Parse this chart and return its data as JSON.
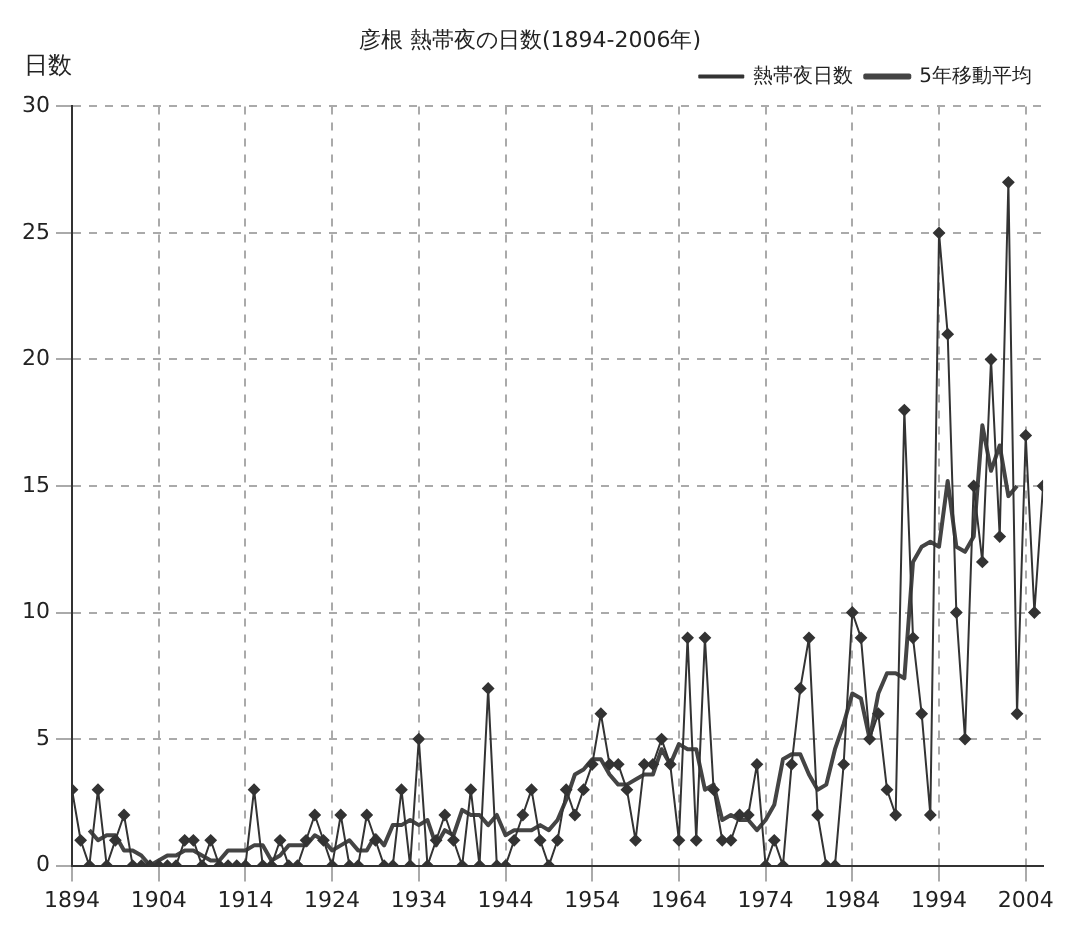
{
  "chart_data": {
    "type": "line",
    "title": "彦根 熱帯夜の日数(1894-2006年)",
    "ylabel": "日数",
    "x": [
      1894,
      1895,
      1896,
      1897,
      1898,
      1899,
      1900,
      1901,
      1902,
      1903,
      1904,
      1905,
      1906,
      1907,
      1908,
      1909,
      1910,
      1911,
      1912,
      1913,
      1914,
      1915,
      1916,
      1917,
      1918,
      1919,
      1920,
      1921,
      1922,
      1923,
      1924,
      1925,
      1926,
      1927,
      1928,
      1929,
      1930,
      1931,
      1932,
      1933,
      1934,
      1935,
      1936,
      1937,
      1938,
      1939,
      1940,
      1941,
      1942,
      1943,
      1944,
      1945,
      1946,
      1947,
      1948,
      1949,
      1950,
      1951,
      1952,
      1953,
      1954,
      1955,
      1956,
      1957,
      1958,
      1959,
      1960,
      1961,
      1962,
      1963,
      1964,
      1965,
      1966,
      1967,
      1968,
      1969,
      1970,
      1971,
      1972,
      1973,
      1974,
      1975,
      1976,
      1977,
      1978,
      1979,
      1980,
      1981,
      1982,
      1983,
      1984,
      1985,
      1986,
      1987,
      1988,
      1989,
      1990,
      1991,
      1992,
      1993,
      1994,
      1995,
      1996,
      1997,
      1998,
      1999,
      2000,
      2001,
      2002,
      2003,
      2004,
      2005,
      2006
    ],
    "series": [
      {
        "name": "熱帯夜日数",
        "color": "#333333",
        "marker": "diamond",
        "values": [
          3,
          1,
          0,
          3,
          0,
          1,
          2,
          0,
          0,
          0,
          0,
          0,
          0,
          1,
          1,
          0,
          1,
          0,
          0,
          0,
          0,
          3,
          0,
          0,
          1,
          0,
          0,
          1,
          2,
          1,
          0,
          2,
          0,
          0,
          2,
          1,
          0,
          0,
          3,
          0,
          5,
          0,
          1,
          2,
          1,
          0,
          3,
          0,
          7,
          0,
          0,
          1,
          2,
          3,
          1,
          0,
          1,
          3,
          2,
          3,
          4,
          6,
          4,
          4,
          3,
          1,
          4,
          4,
          5,
          4,
          1,
          9,
          1,
          9,
          3,
          1,
          1,
          2,
          2,
          4,
          0,
          1,
          0,
          4,
          7,
          9,
          2,
          0,
          0,
          4,
          10,
          9,
          5,
          6,
          3,
          2,
          18,
          9,
          6,
          2,
          25,
          21,
          10,
          5,
          15,
          12,
          20,
          13,
          27,
          6,
          17,
          10,
          15
        ]
      },
      {
        "name": "5年移動平均",
        "color": "#444444",
        "marker": "none",
        "values": [
          null,
          null,
          1.4,
          1.0,
          1.2,
          1.2,
          0.6,
          0.6,
          0.4,
          0,
          0.2,
          0.4,
          0.4,
          0.6,
          0.6,
          0.4,
          0.2,
          0.2,
          0.6,
          0.6,
          0.6,
          0.8,
          0.8,
          0.2,
          0.4,
          0.8,
          0.8,
          0.8,
          1.2,
          1.0,
          0.6,
          0.8,
          1.0,
          0.6,
          0.6,
          1.2,
          0.8,
          1.6,
          1.6,
          1.8,
          1.6,
          1.8,
          0.8,
          1.4,
          1.2,
          2.2,
          2.0,
          2.0,
          1.6,
          2.0,
          1.2,
          1.4,
          1.4,
          1.4,
          1.6,
          1.4,
          1.8,
          2.6,
          3.6,
          3.8,
          4.2,
          4.2,
          3.6,
          3.2,
          3.2,
          3.4,
          3.6,
          3.6,
          4.6,
          4.0,
          4.8,
          4.6,
          4.6,
          3.0,
          3.2,
          1.8,
          2.0,
          1.8,
          1.8,
          1.4,
          1.8,
          2.4,
          4.2,
          4.4,
          4.4,
          3.6,
          3.0,
          3.2,
          4.6,
          5.6,
          6.8,
          6.6,
          5.0,
          6.8,
          7.6,
          7.6,
          7.4,
          12.0,
          12.6,
          12.8,
          12.6,
          15.2,
          12.6,
          12.4,
          13.0,
          17.4,
          15.6,
          16.6,
          14.6,
          15.0,
          null,
          null,
          null
        ]
      }
    ],
    "xlim": [
      1894,
      2006
    ],
    "xticks": [
      1894,
      1904,
      1914,
      1924,
      1934,
      1944,
      1954,
      1964,
      1974,
      1984,
      1994,
      2004
    ],
    "ylim": [
      0,
      30
    ],
    "yticks": [
      0,
      5,
      10,
      15,
      20,
      25,
      30
    ],
    "grid": true,
    "legend": "top right",
    "line_style": "solid"
  }
}
